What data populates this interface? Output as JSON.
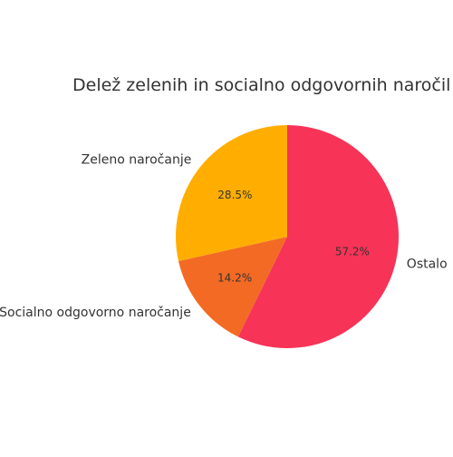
{
  "chart_data": {
    "type": "pie",
    "title": "Delež zelenih in socialno odgovornih naročil (",
    "slices": [
      {
        "label": "Ostalo",
        "value": 57.2,
        "pct_label": "57.2%",
        "color": "#F73357"
      },
      {
        "label": "Socialno odgovorno naročanje",
        "value": 14.2,
        "pct_label": "14.2%",
        "color": "#F36A24"
      },
      {
        "label": "Zeleno naročanje",
        "value": 28.5,
        "pct_label": "28.5%",
        "color": "#FFAE00"
      }
    ],
    "start_angle_deg": 90,
    "direction": "clockwise"
  }
}
